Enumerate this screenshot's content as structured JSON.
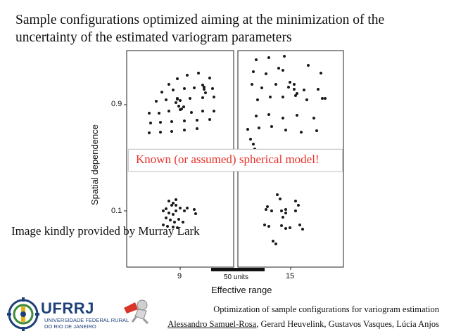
{
  "slide": {
    "title": "Sample configurations optimized aiming at the minimization of the uncertainty of the estimated variogram parameters",
    "side_note": "Image kindly provided by Murray Lark",
    "callout": "Known (or assumed) spherical model!",
    "footer_title": "Optimization of sample configurations for variogram estimation",
    "footer_lead_author": "Alessandro Samuel-Rosa",
    "footer_other_authors": ", Gerard Heuvelink, Gustavos Vasques, Lúcia Anjos",
    "logo_text": "UFRRJ",
    "logo_sub1": "UNIVERSIDADE FEDERAL RURAL",
    "logo_sub2": "DO RIO DE JANEIRO"
  },
  "figure": {
    "ylabel": "Spatial dependence",
    "xlabel": "Effective range",
    "yticks": [
      "0.9",
      "0.1"
    ],
    "xticks": [
      "9",
      "15"
    ],
    "scale_label": "50 units",
    "colors": {
      "points": "#1a1a1a",
      "callout_text": "#e8322a",
      "logo_blue": "#1d3f7a",
      "logo_green": "#3a8a3a"
    }
  }
}
